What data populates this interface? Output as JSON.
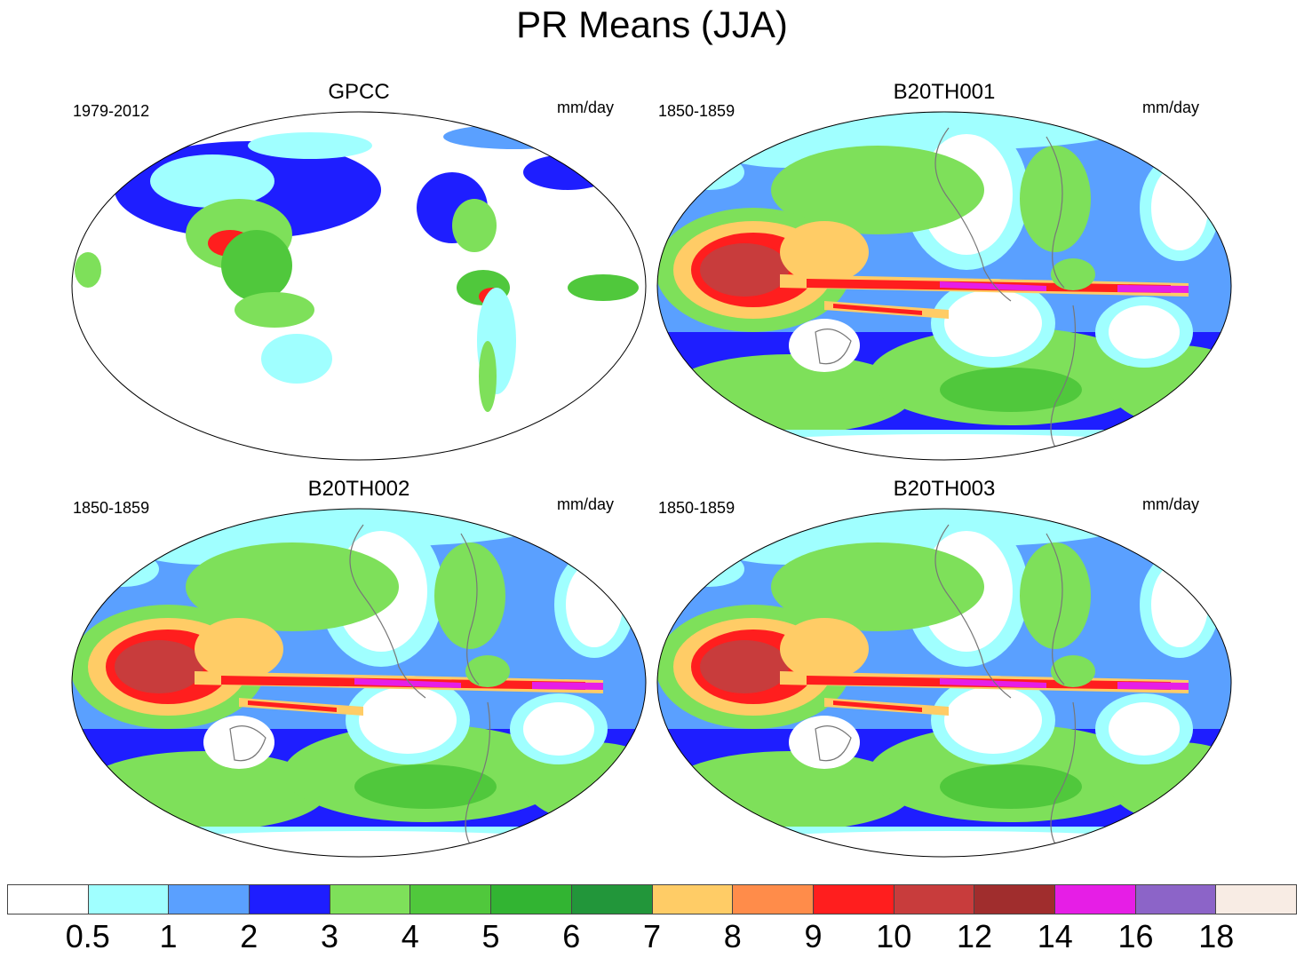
{
  "title": "PR Means (JJA)",
  "panels": [
    {
      "title": "GPCC",
      "period": "1979-2012",
      "units": "mm/day",
      "kind": "obs"
    },
    {
      "title": "B20TH001",
      "period": "1850-1859",
      "units": "mm/day",
      "kind": "model"
    },
    {
      "title": "B20TH002",
      "period": "1850-1859",
      "units": "mm/day",
      "kind": "model"
    },
    {
      "title": "B20TH003",
      "period": "1850-1859",
      "units": "mm/day",
      "kind": "model"
    }
  ],
  "colorbar": {
    "levels": [
      "0.5",
      "1",
      "2",
      "3",
      "4",
      "5",
      "6",
      "7",
      "8",
      "9",
      "10",
      "12",
      "14",
      "16",
      "18"
    ],
    "colors": [
      "#ffffff",
      "#a0ffff",
      "#5aa0ff",
      "#1e1eff",
      "#7ee05a",
      "#50c83c",
      "#32b432",
      "#22963a",
      "#ffcc66",
      "#ff8c4a",
      "#ff1e1e",
      "#c83c3c",
      "#a02d2d",
      "#e61ee6",
      "#8c64c8",
      "#f8ece4"
    ]
  }
}
